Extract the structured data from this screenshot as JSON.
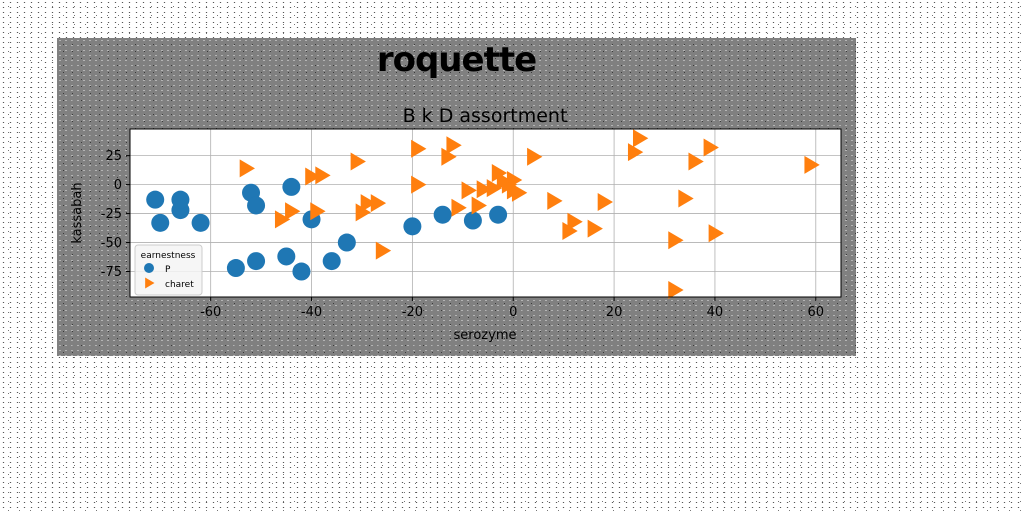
{
  "figure": {
    "suptitle": "roquette"
  },
  "chart_data": {
    "type": "scatter",
    "title": "B k D assortment",
    "xlabel": "serozyme",
    "ylabel": "kassabah",
    "xlim": [
      -76,
      65
    ],
    "ylim": [
      -97,
      48
    ],
    "xticks": [
      -60,
      -40,
      -20,
      0,
      20,
      40,
      60
    ],
    "yticks": [
      25,
      0,
      -25,
      -50,
      -75
    ],
    "grid": true,
    "legend": {
      "title": "earnestness",
      "placement": "lower-left"
    },
    "series": [
      {
        "name": "P",
        "marker": "circle",
        "color": "#1f77b4",
        "points": [
          [
            -71,
            -13
          ],
          [
            -70,
            -33
          ],
          [
            -66,
            -22
          ],
          [
            -66,
            -13
          ],
          [
            -62,
            -33
          ],
          [
            -52,
            -7
          ],
          [
            -51,
            -18
          ],
          [
            -44,
            -2
          ],
          [
            -40,
            -30
          ],
          [
            -33,
            -50
          ],
          [
            -55,
            -72
          ],
          [
            -51,
            -66
          ],
          [
            -45,
            -62
          ],
          [
            -42,
            -75
          ],
          [
            -36,
            -66
          ],
          [
            -20,
            -36
          ],
          [
            -14,
            -26
          ],
          [
            -8,
            -31
          ],
          [
            -3,
            -26
          ]
        ]
      },
      {
        "name": "charet",
        "marker": "triangle-right",
        "color": "#ff7f0e",
        "points": [
          [
            -53,
            14
          ],
          [
            -40,
            7
          ],
          [
            -38,
            8
          ],
          [
            -31,
            20
          ],
          [
            -44,
            -23
          ],
          [
            -46,
            -30
          ],
          [
            -39,
            -23
          ],
          [
            -30,
            -24
          ],
          [
            -29,
            -16
          ],
          [
            -27,
            -16
          ],
          [
            -26,
            -57
          ],
          [
            -19,
            31
          ],
          [
            -19,
            0
          ],
          [
            -12,
            34
          ],
          [
            -13,
            24
          ],
          [
            -11,
            -20
          ],
          [
            -9,
            -5
          ],
          [
            -7,
            -18
          ],
          [
            -6,
            -4
          ],
          [
            -4,
            -3
          ],
          [
            -3,
            10
          ],
          [
            -2,
            3
          ],
          [
            -1,
            0
          ],
          [
            0,
            4
          ],
          [
            0,
            -5
          ],
          [
            1,
            -7
          ],
          [
            4,
            24
          ],
          [
            8,
            -14
          ],
          [
            11,
            -40
          ],
          [
            12,
            -32
          ],
          [
            16,
            -38
          ],
          [
            18,
            -15
          ],
          [
            24,
            28
          ],
          [
            25,
            40
          ],
          [
            32,
            -48
          ],
          [
            32,
            -91
          ],
          [
            34,
            -12
          ],
          [
            36,
            20
          ],
          [
            39,
            32
          ],
          [
            40,
            -42
          ],
          [
            59,
            17
          ]
        ]
      }
    ]
  }
}
